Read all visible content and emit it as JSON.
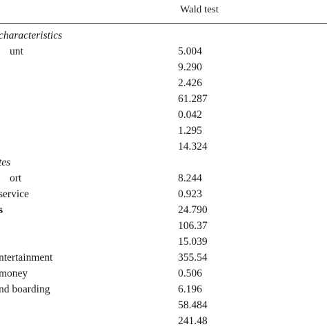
{
  "table": {
    "column_headers": {
      "wald": "Wald test"
    },
    "rows": [
      {
        "label": "characteristics",
        "value": "",
        "style": "section",
        "clip": 4
      },
      {
        "label": "unt",
        "value": "5.004",
        "style": "normal",
        "clip": 30
      },
      {
        "label": "",
        "value": "9.290",
        "style": "normal"
      },
      {
        "label": "",
        "value": "2.426",
        "style": "normal"
      },
      {
        "label": "",
        "value": "61.287",
        "style": "normal"
      },
      {
        "label": "",
        "value": "0.042",
        "style": "normal"
      },
      {
        "label": "",
        "value": "1.295",
        "style": "normal"
      },
      {
        "label": "",
        "value": "14.324",
        "style": "normal"
      },
      {
        "label": "tes",
        "value": "",
        "style": "section",
        "clip": 4
      },
      {
        "label": "ort",
        "value": "8.244",
        "style": "normal",
        "clip": 30
      },
      {
        "label": "service",
        "value": "0.923",
        "style": "normal",
        "clip": 0
      },
      {
        "label": "s",
        "value": "24.790",
        "style": "bold",
        "clip": 0
      },
      {
        "label": "",
        "value": "106.37",
        "style": "normal"
      },
      {
        "label": "",
        "value": "15.039",
        "style": "normal"
      },
      {
        "label": "ntertainment",
        "value": "355.54",
        "style": "normal",
        "clip": 0
      },
      {
        "label": "money",
        "value": "0.506",
        "style": "normal",
        "clip": 2
      },
      {
        "label": "nd boarding",
        "value": "6.196",
        "style": "normal",
        "clip": 0
      },
      {
        "label": "",
        "value": "58.484",
        "style": "normal"
      },
      {
        "label": "",
        "value": "241.48",
        "style": "normal"
      }
    ]
  }
}
